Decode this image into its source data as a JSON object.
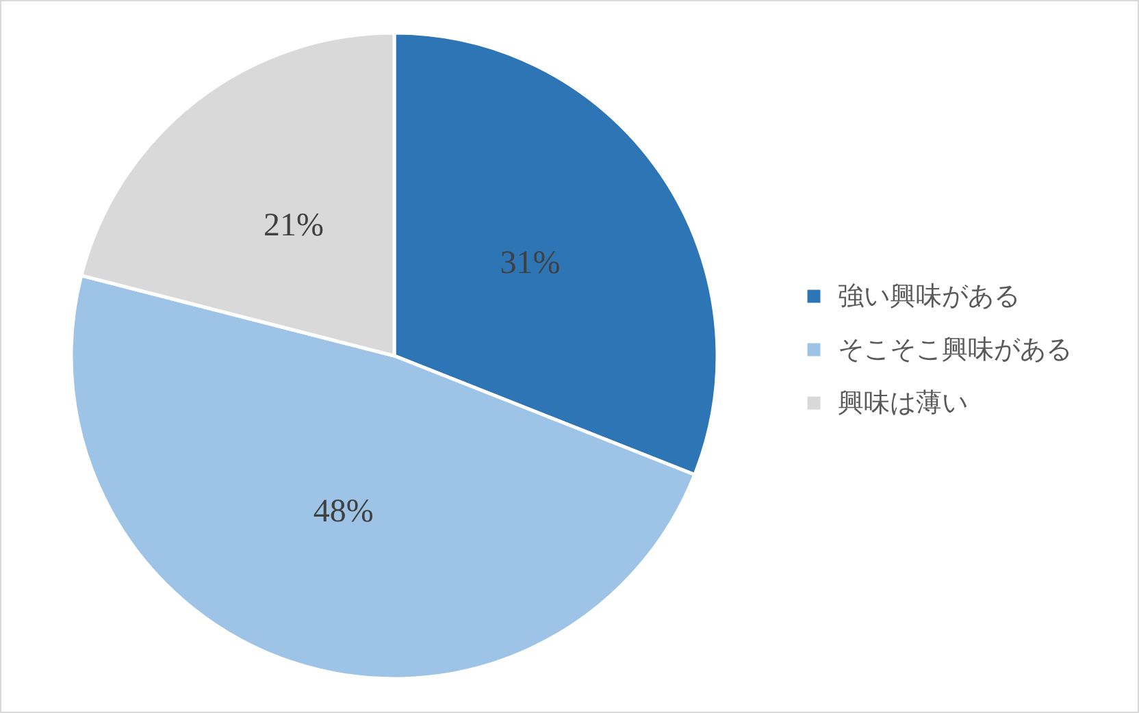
{
  "chart_data": {
    "type": "pie",
    "categories": [
      "強い興味がある",
      "そこそこ興味がある",
      "興味は薄い"
    ],
    "values": [
      31,
      48,
      21
    ],
    "colors": [
      "#2e75b6",
      "#9dc3e6",
      "#d9d9d9"
    ],
    "value_labels": [
      "31%",
      "48%",
      "21%"
    ],
    "legend": "right"
  }
}
